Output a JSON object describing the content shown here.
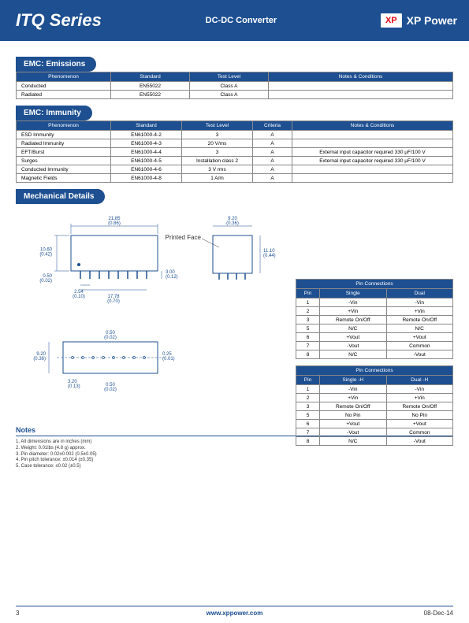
{
  "header": {
    "title": "ITQ Series",
    "subtitle": "DC-DC Converter",
    "logo_mark": "XP",
    "logo_text": "XP Power"
  },
  "emissions": {
    "tab": "EMC: Emissions",
    "headers": [
      "Phenomenon",
      "Standard",
      "Test Level",
      "Notes & Conditions"
    ],
    "rows": [
      [
        "Conducted",
        "EN55022",
        "Class A",
        ""
      ],
      [
        "Radiated",
        "EN55022",
        "Class A",
        ""
      ]
    ],
    "col_widths": [
      "120px",
      "100px",
      "100px",
      "auto"
    ]
  },
  "immunity": {
    "tab": "EMC: Immunity",
    "headers": [
      "Phenomenon",
      "Standard",
      "Test Level",
      "Criteria",
      "Notes & Conditions"
    ],
    "rows": [
      [
        "ESD Immunity",
        "EN61000-4-2",
        "3",
        "A",
        ""
      ],
      [
        "Radiated Immunity",
        "EN61000-4-3",
        "20 V/ms",
        "A",
        ""
      ],
      [
        "EFT/Burst",
        "EN61000-4-4",
        "3",
        "A",
        "External input capacitor required 330 µF/100 V"
      ],
      [
        "Surges",
        "EN61000-4-5",
        "Installation class 2",
        "A",
        "External input capacitor required 330 µF/100 V"
      ],
      [
        "Conducted Immunity",
        "EN61000-4-6",
        "3 V rms",
        "A",
        ""
      ],
      [
        "Magnetic Fields",
        "EN61000-4-8",
        "1 A/m",
        "A",
        ""
      ]
    ],
    "col_widths": [
      "120px",
      "90px",
      "90px",
      "50px",
      "auto"
    ]
  },
  "mechanical": {
    "tab": "Mechanical Details",
    "dims": {
      "w": "21.85",
      "w_mm": "(0.86)",
      "h": "10.60",
      "h_mm": "(0.42)",
      "pin_offset": "0.50",
      "pin_offset_mm": "(0.02)",
      "pin_len": "3.00",
      "pin_len_mm": "(0.12)",
      "pitch": "2.54",
      "pitch_mm": "(0.10)",
      "span": "17.78",
      "span_mm": "(0.70)",
      "side_w": "9.20",
      "side_w_mm": "(0.36)",
      "side_h": "11.10",
      "side_h_mm": "(0.44)",
      "btm_pin": "0.50",
      "btm_pin_mm": "(0.02)",
      "btm_h": "9.20",
      "btm_h_mm": "(0.36)",
      "btm_in": "3.20",
      "btm_in_mm": "(0.13)",
      "btm_off": "0.50",
      "btm_off_mm": "(0.02)",
      "btm_pin2": "0.25",
      "btm_pin2_mm": "(0.01)",
      "pf_label": "Printed Face"
    },
    "colors": {
      "stroke": "#1d4f91",
      "text": "#1d4f91"
    }
  },
  "pin1": {
    "title": "Pin Connections",
    "headers": [
      "Pin",
      "Single",
      "Dual"
    ],
    "rows": [
      [
        "1",
        "-Vin",
        "-Vin"
      ],
      [
        "2",
        "+Vin",
        "+Vin"
      ],
      [
        "3",
        "Remote On/Off",
        "Remote On/Off"
      ],
      [
        "5",
        "N/C",
        "N/C"
      ],
      [
        "6",
        "+Vout",
        "+Vout"
      ],
      [
        "7",
        "-Vout",
        "Common"
      ],
      [
        "8",
        "N/C",
        "-Vout"
      ]
    ]
  },
  "pin2": {
    "title": "Pin Connections",
    "headers": [
      "Pin",
      "Single -H",
      "Dual -H"
    ],
    "rows": [
      [
        "1",
        "-Vin",
        "-Vin"
      ],
      [
        "2",
        "+Vin",
        "+Vin"
      ],
      [
        "3",
        "Remote On/Off",
        "Remote On/Off"
      ],
      [
        "5",
        "No Pin",
        "No Pin"
      ],
      [
        "6",
        "+Vout",
        "+Vout"
      ],
      [
        "7",
        "-Vout",
        "Common"
      ],
      [
        "8",
        "N/C",
        "-Vout"
      ]
    ]
  },
  "notes": {
    "title": "Notes",
    "items": [
      "1. All dimensions are in inches (mm)",
      "2. Weight: 0.01lbs (4.8 g) approx.",
      "3. Pin diameter: 0.02±0.002 (0.5±0.05)",
      "4. Pin pitch tolerance: ±0.014 (±0.35)",
      "5. Case tolerance: ±0.02 (±0.5)"
    ]
  },
  "footer": {
    "page": "3",
    "url": "www.xppower.com",
    "date": "08-Dec-14"
  }
}
